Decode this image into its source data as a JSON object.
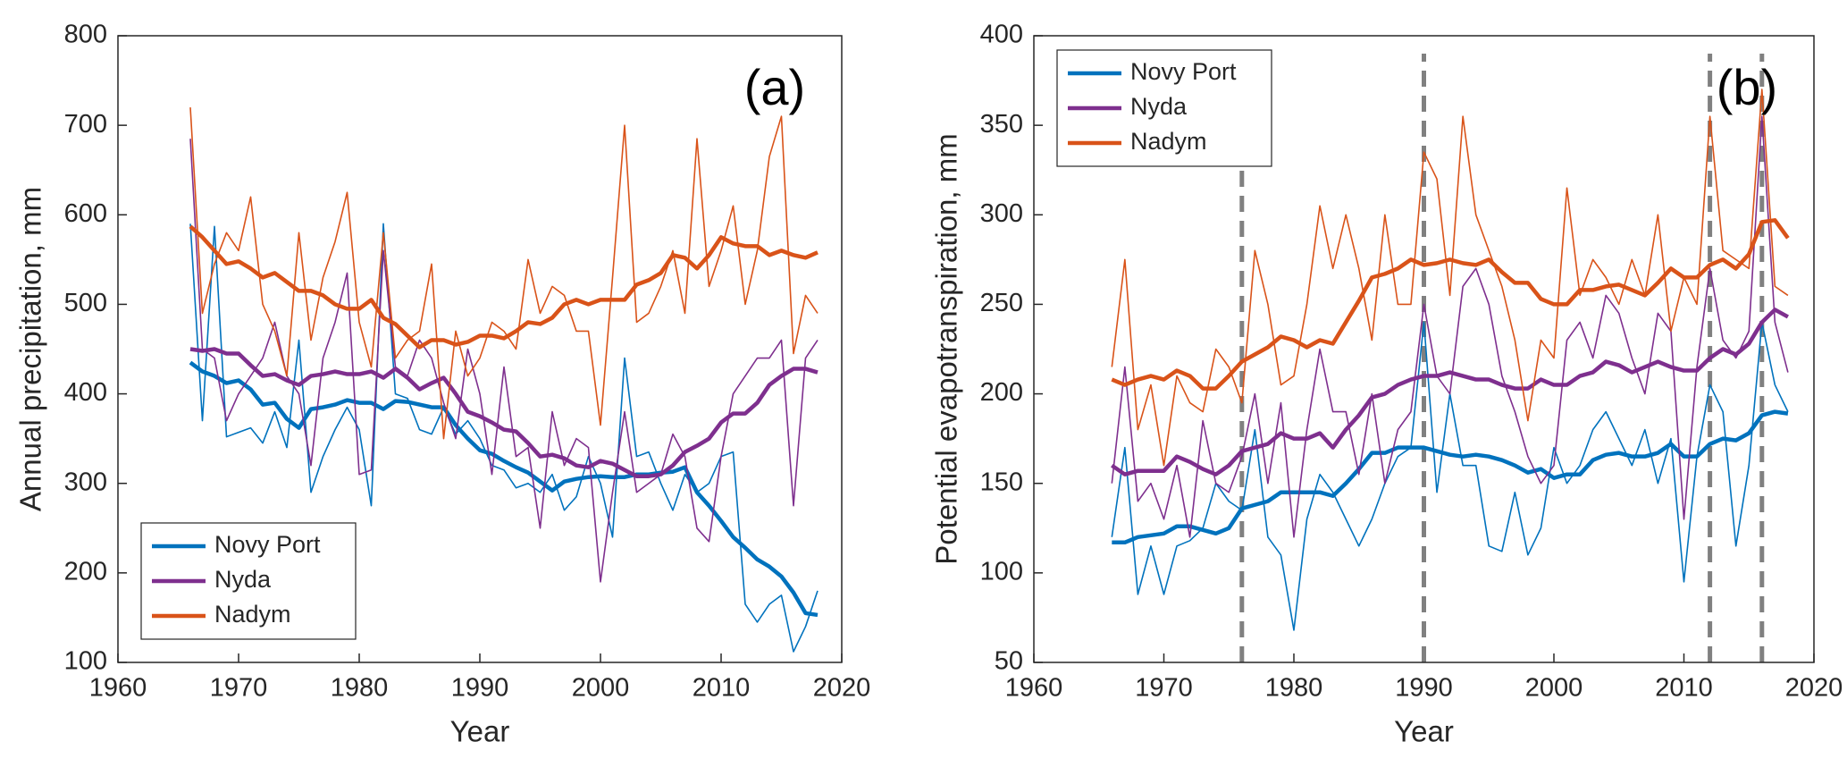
{
  "chart_data": [
    {
      "type": "line",
      "x": [
        1966,
        1967,
        1968,
        1969,
        1970,
        1971,
        1972,
        1973,
        1974,
        1975,
        1976,
        1977,
        1978,
        1979,
        1980,
        1981,
        1982,
        1983,
        1984,
        1985,
        1986,
        1987,
        1988,
        1989,
        1990,
        1991,
        1992,
        1993,
        1994,
        1995,
        1996,
        1997,
        1998,
        1999,
        2000,
        2001,
        2002,
        2003,
        2004,
        2005,
        2006,
        2007,
        2008,
        2009,
        2010,
        2011,
        2012,
        2013,
        2014,
        2015,
        2016,
        2017,
        2018
      ],
      "xlim": [
        1960,
        2020
      ],
      "xticks": [
        1960,
        1970,
        1980,
        1990,
        2000,
        2010,
        2020
      ],
      "ylim": [
        100,
        800
      ],
      "yticks": [
        100,
        200,
        300,
        400,
        500,
        600,
        700,
        800
      ],
      "xlabel": "Year",
      "ylabel": "Annual precipitation, mm",
      "annotation": "(a)",
      "legend": "lower left",
      "series": [
        {
          "name": "Novy Port",
          "color": "#0072bd",
          "values": [
            590,
            370,
            587,
            352,
            357,
            362,
            345,
            380,
            340,
            460,
            290,
            330,
            360,
            385,
            360,
            275,
            590,
            400,
            395,
            360,
            355,
            385,
            355,
            370,
            350,
            320,
            315,
            295,
            300,
            290,
            310,
            270,
            285,
            330,
            300,
            240,
            440,
            330,
            335,
            300,
            270,
            310,
            290,
            300,
            330,
            335,
            165,
            145,
            165,
            175,
            112,
            140,
            180
          ],
          "smoothed": [
            435,
            425,
            420,
            412,
            415,
            405,
            388,
            390,
            372,
            362,
            383,
            385,
            388,
            393,
            390,
            390,
            383,
            392,
            391,
            388,
            385,
            385,
            365,
            350,
            337,
            333,
            325,
            318,
            312,
            302,
            292,
            302,
            305,
            307,
            308,
            307,
            307,
            310,
            310,
            312,
            313,
            318,
            290,
            275,
            258,
            240,
            228,
            215,
            207,
            196,
            178,
            155,
            153
          ]
        },
        {
          "name": "Nyda",
          "color": "#7e2f8e",
          "values": [
            685,
            450,
            440,
            370,
            400,
            420,
            440,
            480,
            420,
            400,
            320,
            440,
            480,
            535,
            310,
            315,
            560,
            430,
            420,
            460,
            440,
            390,
            350,
            450,
            400,
            310,
            430,
            330,
            340,
            250,
            380,
            320,
            350,
            340,
            190,
            290,
            380,
            290,
            300,
            310,
            355,
            330,
            250,
            235,
            330,
            400,
            420,
            440,
            440,
            460,
            275,
            440,
            460
          ],
          "smoothed": [
            450,
            448,
            450,
            445,
            445,
            432,
            420,
            422,
            415,
            410,
            420,
            422,
            425,
            422,
            422,
            425,
            418,
            428,
            418,
            405,
            412,
            418,
            400,
            380,
            375,
            368,
            360,
            358,
            345,
            330,
            332,
            328,
            320,
            318,
            325,
            322,
            315,
            308,
            308,
            310,
            320,
            335,
            342,
            350,
            368,
            378,
            378,
            390,
            410,
            420,
            428,
            428,
            424
          ]
        },
        {
          "name": "Nadym",
          "color": "#d95319",
          "values": [
            720,
            490,
            545,
            580,
            560,
            620,
            500,
            470,
            420,
            580,
            460,
            530,
            570,
            625,
            480,
            430,
            580,
            440,
            460,
            470,
            545,
            350,
            470,
            420,
            440,
            480,
            470,
            450,
            550,
            490,
            520,
            510,
            470,
            470,
            365,
            530,
            700,
            480,
            490,
            520,
            560,
            490,
            685,
            520,
            560,
            610,
            500,
            560,
            665,
            710,
            445,
            510,
            490
          ],
          "smoothed": [
            587,
            575,
            560,
            545,
            548,
            540,
            530,
            535,
            525,
            515,
            515,
            510,
            500,
            495,
            495,
            505,
            485,
            478,
            465,
            452,
            460,
            460,
            455,
            458,
            465,
            465,
            462,
            470,
            480,
            478,
            485,
            500,
            505,
            500,
            505,
            505,
            505,
            522,
            527,
            535,
            555,
            552,
            540,
            555,
            575,
            568,
            565,
            565,
            555,
            560,
            555,
            552,
            558
          ]
        }
      ]
    },
    {
      "type": "line",
      "x": [
        1966,
        1967,
        1968,
        1969,
        1970,
        1971,
        1972,
        1973,
        1974,
        1975,
        1976,
        1977,
        1978,
        1979,
        1980,
        1981,
        1982,
        1983,
        1984,
        1985,
        1986,
        1987,
        1988,
        1989,
        1990,
        1991,
        1992,
        1993,
        1994,
        1995,
        1996,
        1997,
        1998,
        1999,
        2000,
        2001,
        2002,
        2003,
        2004,
        2005,
        2006,
        2007,
        2008,
        2009,
        2010,
        2011,
        2012,
        2013,
        2014,
        2015,
        2016,
        2017,
        2018
      ],
      "xlim": [
        1960,
        2020
      ],
      "xticks": [
        1960,
        1970,
        1980,
        1990,
        2000,
        2010,
        2020
      ],
      "ylim": [
        50,
        400
      ],
      "yticks": [
        50,
        100,
        150,
        200,
        250,
        300,
        350,
        400
      ],
      "xlabel": "Year",
      "ylabel": "Potential evapotranspiration, mm",
      "annotation": "(b)",
      "legend": "upper left",
      "vlines": [
        1976,
        1990,
        2012,
        2016
      ],
      "vline_color": "#808080",
      "series": [
        {
          "name": "Novy Port",
          "color": "#0072bd",
          "values": [
            120,
            170,
            88,
            115,
            88,
            115,
            118,
            125,
            150,
            140,
            135,
            180,
            120,
            110,
            68,
            130,
            155,
            145,
            130,
            115,
            130,
            150,
            165,
            170,
            240,
            145,
            200,
            160,
            160,
            115,
            112,
            145,
            110,
            125,
            170,
            150,
            160,
            180,
            190,
            175,
            160,
            180,
            150,
            175,
            95,
            165,
            205,
            190,
            115,
            160,
            240,
            205,
            190
          ],
          "smoothed": [
            117,
            117,
            120,
            121,
            122,
            126,
            126,
            124,
            122,
            125,
            136,
            138,
            140,
            145,
            145,
            145,
            145,
            143,
            150,
            158,
            167,
            167,
            170,
            170,
            170,
            168,
            166,
            165,
            166,
            165,
            163,
            160,
            156,
            158,
            153,
            155,
            155,
            163,
            166,
            167,
            165,
            165,
            167,
            172,
            165,
            165,
            172,
            175,
            174,
            178,
            188,
            190,
            189
          ]
        },
        {
          "name": "Nyda",
          "color": "#7e2f8e",
          "values": [
            150,
            215,
            140,
            150,
            130,
            160,
            120,
            185,
            150,
            145,
            165,
            200,
            150,
            195,
            120,
            180,
            225,
            190,
            190,
            155,
            200,
            150,
            180,
            190,
            250,
            210,
            200,
            260,
            270,
            250,
            210,
            190,
            165,
            150,
            160,
            230,
            240,
            220,
            255,
            245,
            220,
            200,
            245,
            235,
            130,
            215,
            270,
            230,
            220,
            235,
            355,
            240,
            212
          ],
          "smoothed": [
            160,
            155,
            157,
            157,
            157,
            165,
            162,
            158,
            155,
            160,
            168,
            170,
            172,
            178,
            175,
            175,
            178,
            170,
            180,
            188,
            198,
            200,
            205,
            208,
            210,
            210,
            212,
            210,
            208,
            208,
            205,
            203,
            203,
            208,
            205,
            205,
            210,
            212,
            218,
            216,
            212,
            215,
            218,
            215,
            213,
            213,
            220,
            225,
            222,
            228,
            240,
            247,
            243
          ]
        },
        {
          "name": "Nadym",
          "color": "#d95319",
          "values": [
            215,
            275,
            180,
            205,
            160,
            210,
            195,
            190,
            225,
            215,
            195,
            280,
            250,
            205,
            210,
            250,
            305,
            270,
            300,
            270,
            230,
            300,
            250,
            250,
            335,
            320,
            255,
            355,
            300,
            280,
            260,
            230,
            185,
            230,
            220,
            315,
            255,
            275,
            265,
            250,
            275,
            255,
            300,
            235,
            265,
            250,
            355,
            280,
            275,
            270,
            370,
            260,
            255
          ],
          "smoothed": [
            208,
            205,
            208,
            210,
            208,
            213,
            210,
            203,
            203,
            210,
            218,
            222,
            226,
            232,
            230,
            226,
            230,
            228,
            240,
            252,
            265,
            267,
            270,
            275,
            272,
            273,
            275,
            273,
            272,
            275,
            268,
            262,
            262,
            253,
            250,
            250,
            258,
            258,
            260,
            261,
            258,
            255,
            262,
            270,
            265,
            265,
            272,
            275,
            270,
            278,
            296,
            297,
            287
          ]
        }
      ]
    }
  ]
}
